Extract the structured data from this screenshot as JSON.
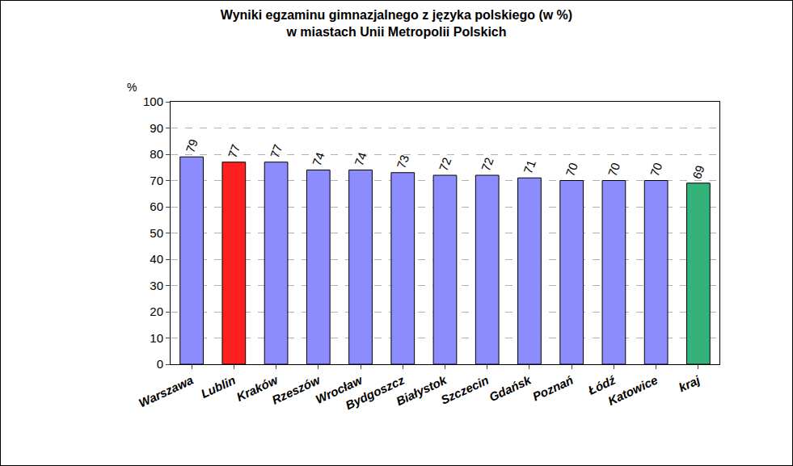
{
  "chart_data": {
    "type": "bar",
    "title": "Wyniki egzaminu gimnazjalnego z języka polskiego (w %)\nw miastach Unii Metropolii Polskich",
    "y_label": "%",
    "categories": [
      "Warszawa",
      "Lublin",
      "Kraków",
      "Rzeszów",
      "Wrocław",
      "Bydgoszcz",
      "Białystok",
      "Szczecin",
      "Gdańsk",
      "Poznań",
      "Łódź",
      "Katowice",
      "kraj"
    ],
    "values": [
      79,
      77,
      77,
      74,
      74,
      73,
      72,
      72,
      71,
      70,
      70,
      70,
      69
    ],
    "colors": [
      "#8c8cff",
      "#ff2020",
      "#8c8cff",
      "#8c8cff",
      "#8c8cff",
      "#8c8cff",
      "#8c8cff",
      "#8c8cff",
      "#8c8cff",
      "#8c8cff",
      "#8c8cff",
      "#8c8cff",
      "#33b37a"
    ],
    "ylim": [
      0,
      100
    ],
    "yticks": [
      0,
      10,
      20,
      30,
      40,
      50,
      60,
      70,
      80,
      90,
      100
    ],
    "grid": true,
    "data_labels": true
  }
}
